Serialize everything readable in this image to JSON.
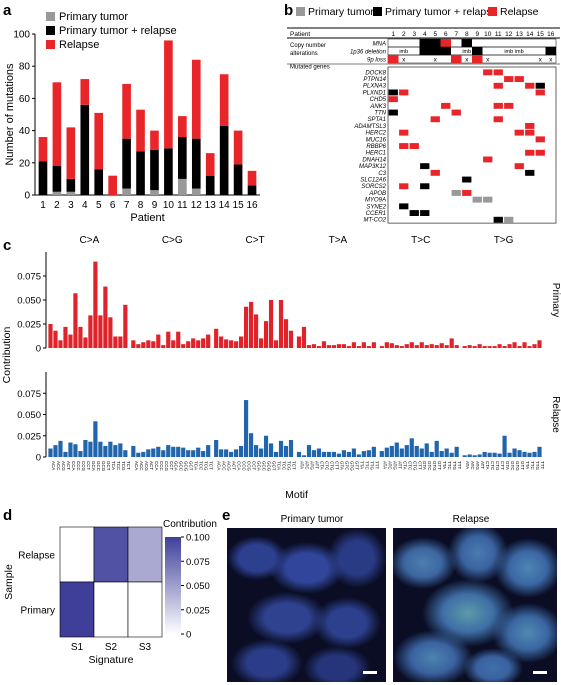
{
  "colors": {
    "primary": "#999999",
    "both": "#000000",
    "relapse": "#e8262a",
    "red": "#e0232a",
    "blue": "#2166ac",
    "heat_dark": "#3f3f9a"
  },
  "panel_labels": {
    "a": "a",
    "b": "b",
    "c": "c",
    "d": "d",
    "e": "e"
  },
  "chart_data": [
    {
      "id": "a",
      "type": "bar",
      "stacked": true,
      "title": "",
      "xlabel": "Patient",
      "ylabel": "Number of mutations",
      "ylim": [
        0,
        100
      ],
      "yticks": [
        0,
        20,
        40,
        60,
        80,
        100
      ],
      "categories": [
        "1",
        "2",
        "3",
        "4",
        "5",
        "6",
        "7",
        "8",
        "9",
        "10",
        "11",
        "12",
        "13",
        "14",
        "15",
        "16"
      ],
      "legend_position": "top-left",
      "series": [
        {
          "name": "Primary tumor",
          "color": "#999999",
          "values": [
            0,
            2,
            2,
            0,
            0,
            0,
            4,
            0,
            3,
            0,
            10,
            4,
            0,
            0,
            0,
            0
          ]
        },
        {
          "name": "Primary tumor + relapse",
          "color": "#000000",
          "values": [
            21,
            16,
            8,
            56,
            16,
            0,
            31,
            27,
            25,
            29,
            26,
            31,
            12,
            43,
            19,
            6
          ]
        },
        {
          "name": "Relapse",
          "color": "#e8262a",
          "values": [
            15,
            52,
            32,
            16,
            35,
            12,
            34,
            26,
            12,
            67,
            13,
            49,
            14,
            32,
            21,
            9
          ]
        }
      ]
    },
    {
      "id": "b",
      "type": "table",
      "header_label": "Patient",
      "patients": [
        "1",
        "2",
        "3",
        "4",
        "5",
        "6",
        "7",
        "8",
        "9",
        "10",
        "11",
        "12",
        "13",
        "14",
        "15",
        "16"
      ],
      "legend": [
        "Primary tumor",
        "Primary tumor + relapse",
        "Relapse"
      ],
      "group_cna": "Copy number alterations",
      "cna_rows": [
        "MNA",
        "1p36 deletion",
        "9p loss"
      ],
      "cna_marks": {
        "imb": "imb",
        "x": "x"
      },
      "group_genes": "Mutated genes",
      "genes": [
        "DOCK8",
        "PTPN14",
        "PLXNA3",
        "PLXND1",
        "CHD5",
        "ANK3",
        "TTN",
        "SPTA1",
        "ADAMTSL3",
        "HERC2",
        "MUC16",
        "RBBP6",
        "HERC1",
        "DNAH14",
        "MAP3K12",
        "C3",
        "SLC12A6",
        "SORCS2",
        "APOB",
        "MYO9A",
        "SYNE2",
        "CCER1",
        "MT-CO2"
      ]
    },
    {
      "id": "c",
      "type": "bar",
      "ylabel": "Contribution",
      "xlabel": "Motif",
      "ylim": [
        0,
        0.1
      ],
      "yticks": [
        "0",
        "0.025",
        "0.050",
        "0.075"
      ],
      "groups": [
        "C>A",
        "C>G",
        "C>T",
        "T>A",
        "T>C",
        "T>G"
      ],
      "series": [
        {
          "name": "Primary",
          "color": "#e0232a",
          "values": [
            0.025,
            0.018,
            0.008,
            0.022,
            0.014,
            0.057,
            0.022,
            0.011,
            0.034,
            0.09,
            0.034,
            0.064,
            0.032,
            0.012,
            0.012,
            0.045,
            0.008,
            0.004,
            0.006,
            0.008,
            0.007,
            0.014,
            0.003,
            0.017,
            0.008,
            0.017,
            0.004,
            0.007,
            0.01,
            0.008,
            0.01,
            0.014,
            0.02,
            0.012,
            0.009,
            0.008,
            0.007,
            0.012,
            0.043,
            0.048,
            0.035,
            0.01,
            0.028,
            0.05,
            0.008,
            0.05,
            0.03,
            0.018,
            0.012,
            0.022,
            0.003,
            0.004,
            0.002,
            0.007,
            0.003,
            0.003,
            0.004,
            0.004,
            0.002,
            0.006,
            0.002,
            0.006,
            0.002,
            0.006,
            0.002,
            0.006,
            0.005,
            0.003,
            0.002,
            0.004,
            0.006,
            0.003,
            0.006,
            0.003,
            0.004,
            0.003,
            0.005,
            0.003,
            0.01,
            0.003,
            0.002,
            0.003,
            0.002,
            0.004,
            0.002,
            0.002,
            0.002,
            0.004,
            0.002,
            0.004,
            0.006,
            0.002,
            0.006,
            0.002,
            0.004,
            0.008
          ]
        },
        {
          "name": "Relapse",
          "color": "#2166ac",
          "values": [
            0.01,
            0.014,
            0.019,
            0.006,
            0.017,
            0.015,
            0.007,
            0.02,
            0.018,
            0.042,
            0.018,
            0.013,
            0.018,
            0.014,
            0.016,
            0.008,
            0.013,
            0.005,
            0.006,
            0.009,
            0.01,
            0.012,
            0.008,
            0.014,
            0.012,
            0.012,
            0.011,
            0.008,
            0.008,
            0.011,
            0.007,
            0.014,
            0.02,
            0.009,
            0.009,
            0.006,
            0.009,
            0.013,
            0.067,
            0.028,
            0.014,
            0.01,
            0.025,
            0.016,
            0.006,
            0.019,
            0.013,
            0.02,
            0.006,
            0.002,
            0.014,
            0.008,
            0.01,
            0.006,
            0.006,
            0.006,
            0.004,
            0.008,
            0.006,
            0.01,
            0.003,
            0.007,
            0.008,
            0.012,
            0.007,
            0.011,
            0.013,
            0.017,
            0.01,
            0.014,
            0.022,
            0.013,
            0.01,
            0.016,
            0.006,
            0.019,
            0.007,
            0.01,
            0.005,
            0.012,
            0.002,
            0.003,
            0.002,
            0.003,
            0.006,
            0.005,
            0.005,
            0.004,
            0.025,
            0.005,
            0.01,
            0.008,
            0.006,
            0.005,
            0.006,
            0.012
          ]
        }
      ]
    },
    {
      "id": "d",
      "type": "heatmap",
      "xlabel": "Signature",
      "ylabel": "Sample",
      "x": [
        "S1",
        "S2",
        "S3"
      ],
      "y": [
        "Relapse",
        "Primary"
      ],
      "values": [
        [
          0.0,
          0.09,
          0.045
        ],
        [
          0.1,
          0.0,
          0.0
        ]
      ],
      "colorbar_title": "Contribution",
      "colorbar_ticks": [
        "0",
        "0.025",
        "0.050",
        "0.075",
        "0.100"
      ],
      "colorbar_range": [
        0,
        0.1
      ]
    }
  ],
  "panel_e": {
    "left_title": "Primary tumor",
    "right_title": "Relapse"
  }
}
